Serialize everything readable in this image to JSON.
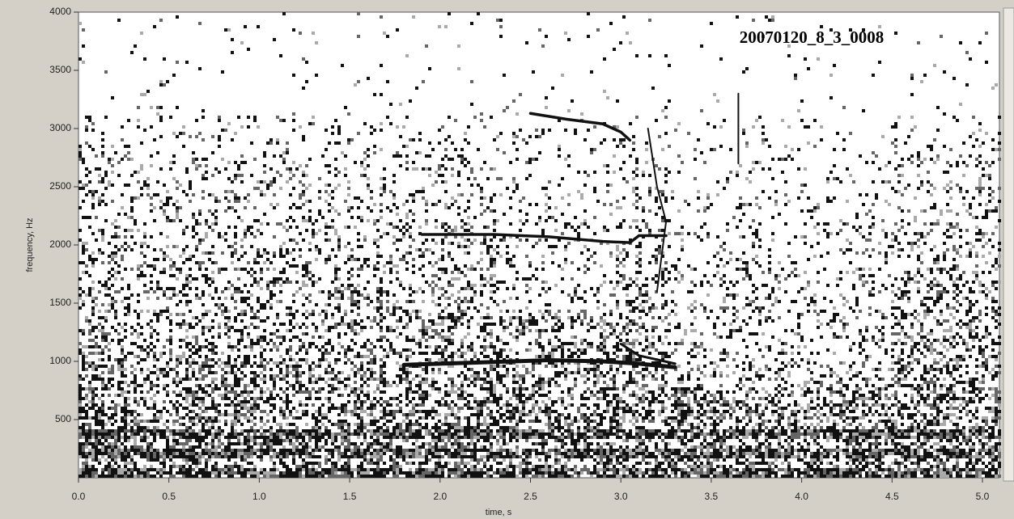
{
  "chart_data": {
    "type": "spectrogram",
    "annotation": "20070120_8_3_0008",
    "xlabel": "time, s",
    "ylabel": "frequency, Hz",
    "xlim": [
      0,
      5.094
    ],
    "ylim": [
      0,
      4000
    ],
    "xticks": [
      {
        "value": 0,
        "label": "0.0"
      },
      0.5,
      {
        "value": 1,
        "label": "1.0"
      },
      1.5,
      {
        "value": 2,
        "label": "2.0"
      },
      2.5,
      {
        "value": 3,
        "label": "3.0"
      },
      3.5,
      {
        "value": 4,
        "label": "4.0"
      },
      4.5,
      {
        "value": 5,
        "label": "5.0"
      }
    ],
    "yticks": [
      500,
      1000,
      1500,
      2000,
      2500,
      3000,
      3500,
      4000
    ]
  }
}
